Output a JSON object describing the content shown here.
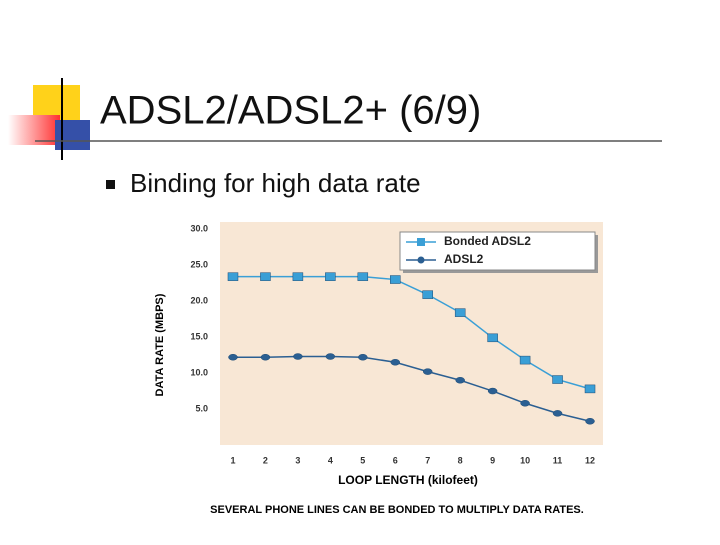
{
  "slide": {
    "title": "ADSL2/ADSL2+ (6/9)",
    "bullet": "Binding for high data rate"
  },
  "chart_data": {
    "type": "line",
    "x": [
      1,
      2,
      3,
      4,
      5,
      6,
      7,
      8,
      9,
      10,
      11,
      12
    ],
    "xlim": [
      0.6,
      12.4
    ],
    "xticks": [
      1,
      2,
      3,
      4,
      5,
      6,
      7,
      8,
      9,
      10,
      11,
      12
    ],
    "ylim": [
      0,
      31
    ],
    "yticks": [
      {
        "value": 5,
        "label": "5.0"
      },
      {
        "value": 10,
        "label": "10.0"
      },
      {
        "value": 15,
        "label": "15.0"
      },
      {
        "value": 20,
        "label": "20.0"
      },
      {
        "value": 25,
        "label": "25.0"
      },
      {
        "value": 30,
        "label": "30.0"
      }
    ],
    "y_label": "DATA RATE (MBPS)",
    "x_label": "LOOP LENGTH (kilofeet)",
    "caption": "SEVERAL PHONE LINES CAN BE BONDED TO MULTIPLY DATA RATES.",
    "legend": "upper right",
    "series": [
      {
        "name": "Bonded ADSL2",
        "color": "#3a9fd6",
        "marker": "square",
        "values": [
          23.4,
          23.4,
          23.4,
          23.4,
          23.4,
          23.0,
          20.9,
          18.4,
          14.9,
          11.8,
          9.1,
          7.8
        ]
      },
      {
        "name": "ADSL2",
        "color": "#2b5f92",
        "marker": "circle",
        "values": [
          12.2,
          12.2,
          12.3,
          12.3,
          12.2,
          11.5,
          10.2,
          9.0,
          7.5,
          5.8,
          4.4,
          3.3
        ]
      }
    ]
  }
}
